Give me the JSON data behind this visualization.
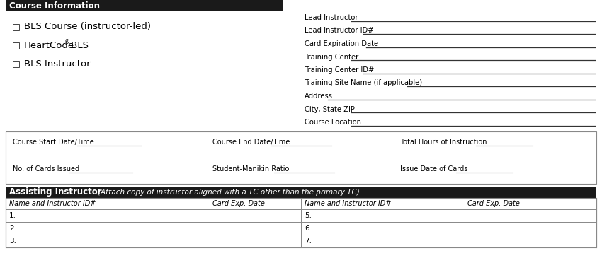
{
  "bg_color": "#ffffff",
  "header_bg": "#1a1a1a",
  "header_text_color": "#ffffff",
  "section1_header": "Course Information",
  "checkboxes": [
    "BLS Course (instructor-led)",
    "HeartCode® BLS",
    "BLS Instructor"
  ],
  "right_fields": [
    "Lead Instructor",
    "Lead Instructor ID#",
    "Card Expiration Date",
    "Training Center",
    "Training Center ID#",
    "Training Site Name (if applicable)",
    "Address",
    "City, State ZIP",
    "Course Location"
  ],
  "mid_row1": [
    "Course Start Date/Time",
    "Course End Date/Time",
    "Total Hours of Instruction"
  ],
  "mid_row2": [
    "No. of Cards Issued",
    "Student-Manikin Ratio",
    "Issue Date of Cards"
  ],
  "assisting_header": "Assisting Instructor",
  "assisting_subtitle": "(Attach copy of instructor aligned with a TC other than the primary TC)",
  "table_col_headers": [
    "Name and Instructor ID#",
    "Card Exp. Date",
    "Name and Instructor ID#",
    "Card Exp. Date"
  ],
  "left_rows": [
    "1.",
    "2.",
    "3."
  ],
  "right_rows": [
    "5.",
    "6.",
    "7."
  ],
  "line_color": "#888888",
  "dark_line_color": "#333333"
}
